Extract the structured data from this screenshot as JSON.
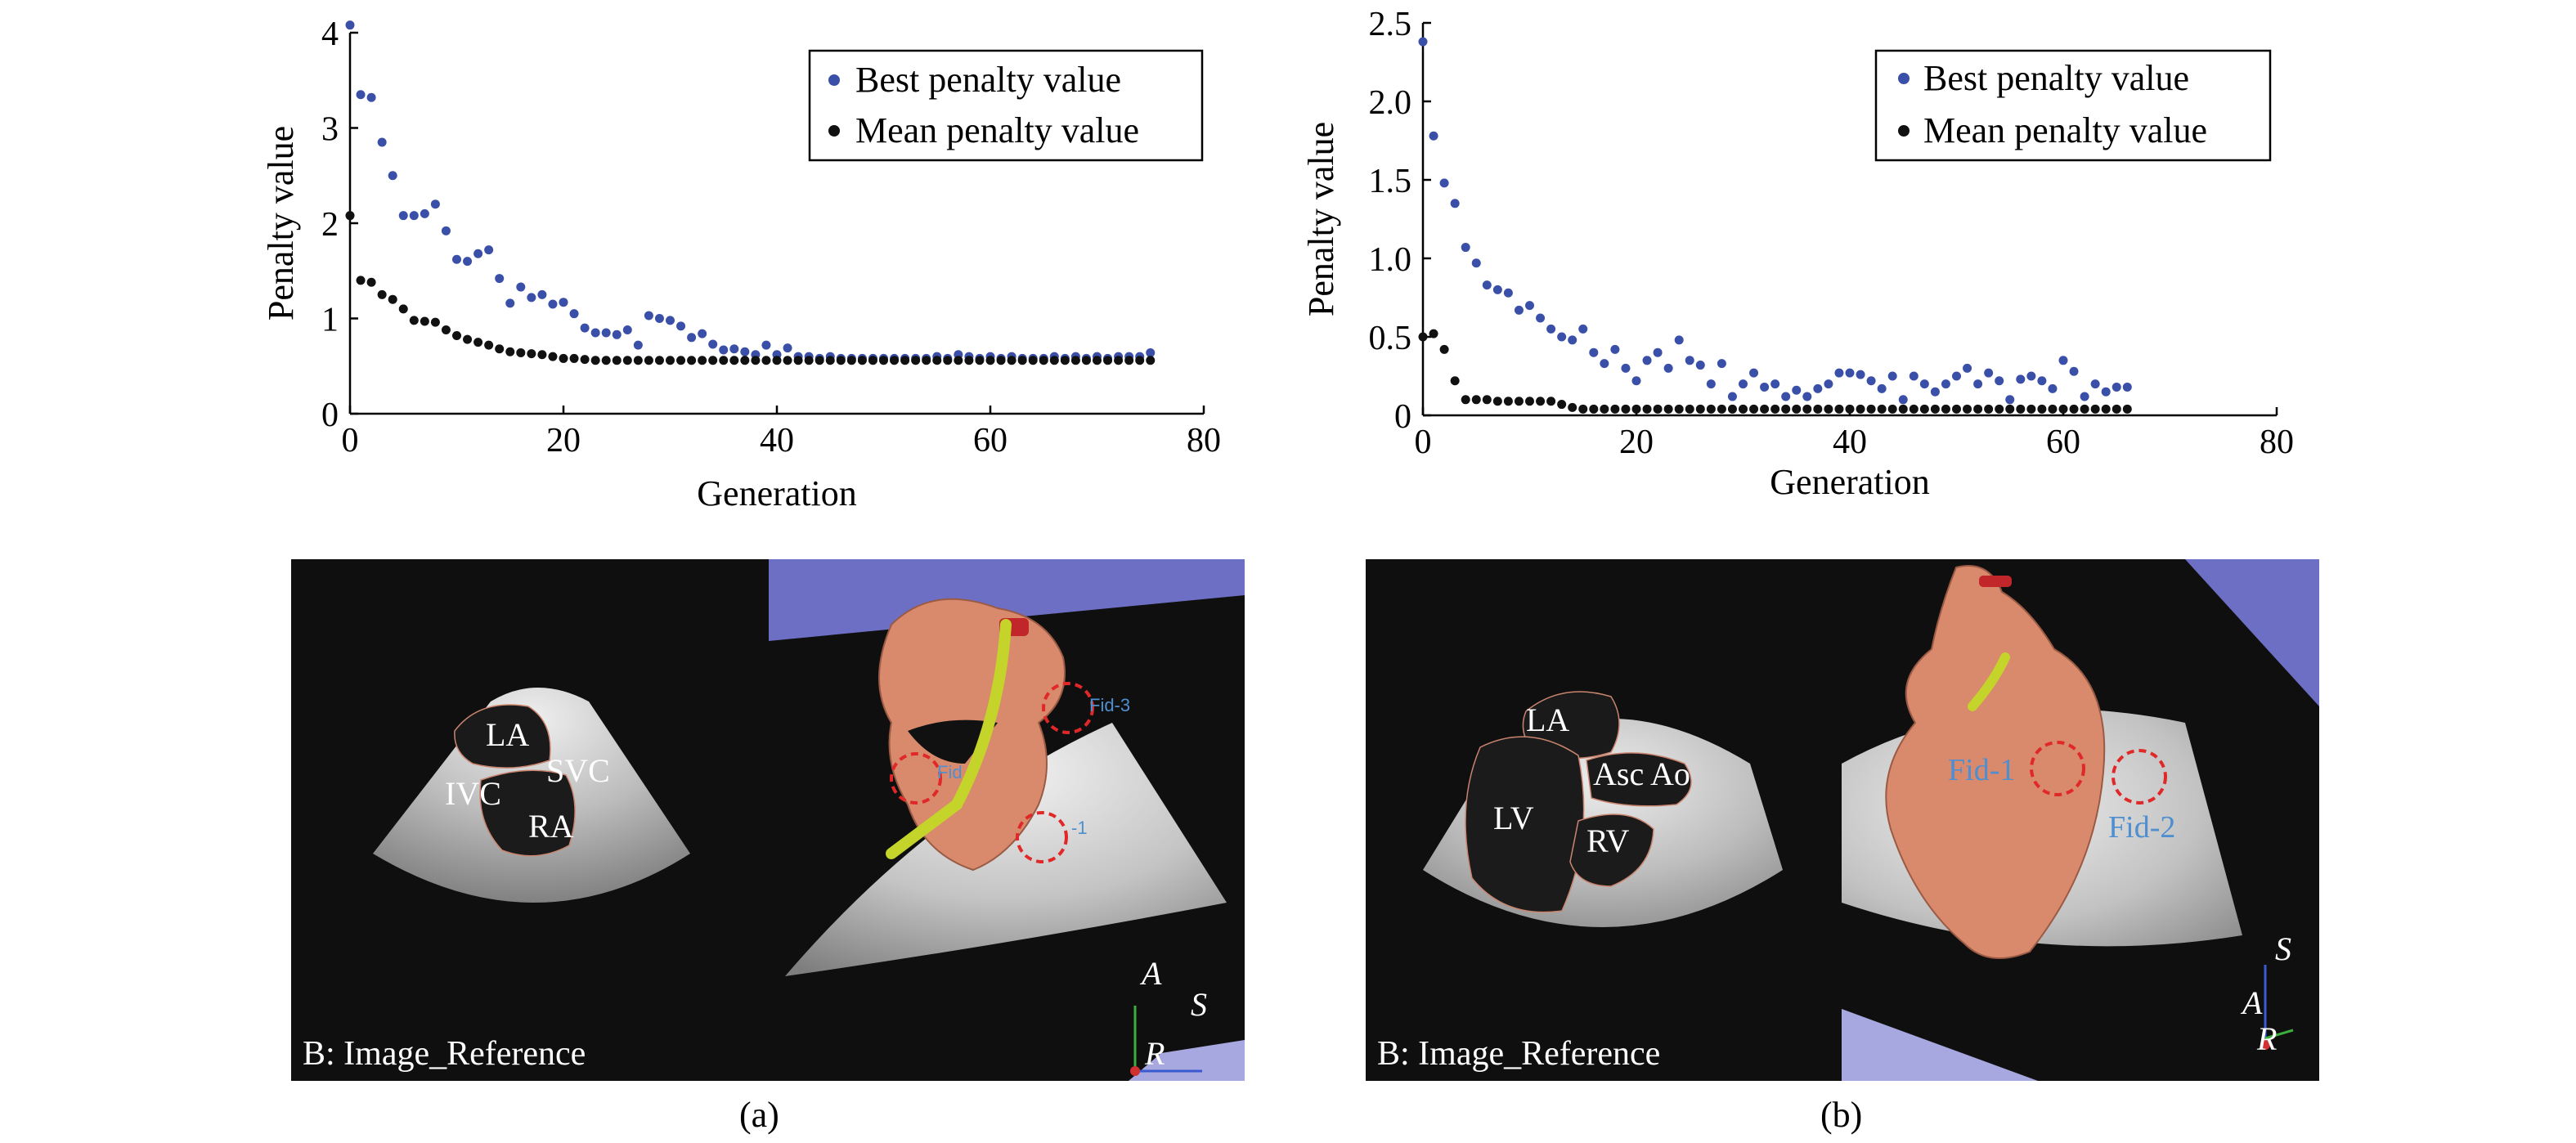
{
  "chart_data": [
    {
      "type": "scatter",
      "title": "",
      "xlabel": "Generation",
      "ylabel": "Penalty value",
      "xlim": [
        0,
        80
      ],
      "ylim": [
        0,
        4
      ],
      "xticks": [
        "0",
        "20",
        "40",
        "60",
        "80"
      ],
      "yticks": [
        "0",
        "1",
        "2",
        "3",
        "4"
      ],
      "legend_position": "top-right",
      "series": [
        {
          "name": "Best penalty value",
          "color": "#3a4fa8",
          "x": [
            0,
            1,
            2,
            3,
            4,
            5,
            6,
            7,
            8,
            9,
            10,
            11,
            12,
            13,
            14,
            15,
            16,
            17,
            18,
            19,
            20,
            21,
            22,
            23,
            24,
            25,
            26,
            27,
            28,
            29,
            30,
            31,
            32,
            33,
            34,
            35,
            36,
            37,
            38,
            39,
            40,
            41,
            42,
            43,
            44,
            45,
            46,
            47,
            48,
            49,
            50,
            51,
            52,
            53,
            54,
            55,
            56,
            57,
            58,
            59,
            60,
            61,
            62,
            63,
            64,
            65,
            66,
            67,
            68,
            69,
            70,
            71,
            72,
            73,
            74,
            75
          ],
          "y": [
            4.08,
            3.35,
            3.32,
            2.85,
            2.5,
            2.08,
            2.08,
            2.1,
            2.2,
            1.92,
            1.62,
            1.6,
            1.68,
            1.72,
            1.42,
            1.16,
            1.33,
            1.22,
            1.25,
            1.15,
            1.17,
            1.05,
            0.9,
            0.85,
            0.85,
            0.83,
            0.88,
            0.72,
            1.03,
            1.0,
            0.98,
            0.92,
            0.8,
            0.84,
            0.73,
            0.67,
            0.68,
            0.65,
            0.62,
            0.72,
            0.62,
            0.69,
            0.6,
            0.6,
            0.58,
            0.6,
            0.58,
            0.58,
            0.58,
            0.58,
            0.58,
            0.58,
            0.58,
            0.58,
            0.58,
            0.6,
            0.58,
            0.62,
            0.6,
            0.58,
            0.6,
            0.58,
            0.6,
            0.58,
            0.58,
            0.58,
            0.6,
            0.58,
            0.6,
            0.58,
            0.6,
            0.58,
            0.6,
            0.6,
            0.6,
            0.64
          ]
        },
        {
          "name": "Mean penalty value",
          "color": "#111111",
          "x": [
            0,
            1,
            2,
            3,
            4,
            5,
            6,
            7,
            8,
            9,
            10,
            11,
            12,
            13,
            14,
            15,
            16,
            17,
            18,
            19,
            20,
            21,
            22,
            23,
            24,
            25,
            26,
            27,
            28,
            29,
            30,
            31,
            32,
            33,
            34,
            35,
            36,
            37,
            38,
            39,
            40,
            41,
            42,
            43,
            44,
            45,
            46,
            47,
            48,
            49,
            50,
            51,
            52,
            53,
            54,
            55,
            56,
            57,
            58,
            59,
            60,
            61,
            62,
            63,
            64,
            65,
            66,
            67,
            68,
            69,
            70,
            71,
            72,
            73,
            74,
            75
          ],
          "y": [
            2.08,
            1.4,
            1.38,
            1.25,
            1.2,
            1.1,
            0.98,
            0.97,
            0.96,
            0.88,
            0.82,
            0.78,
            0.75,
            0.72,
            0.68,
            0.65,
            0.64,
            0.63,
            0.62,
            0.6,
            0.58,
            0.58,
            0.57,
            0.56,
            0.56,
            0.56,
            0.56,
            0.56,
            0.56,
            0.56,
            0.56,
            0.56,
            0.56,
            0.56,
            0.56,
            0.56,
            0.56,
            0.56,
            0.56,
            0.56,
            0.56,
            0.56,
            0.56,
            0.56,
            0.56,
            0.56,
            0.56,
            0.56,
            0.56,
            0.56,
            0.56,
            0.56,
            0.56,
            0.56,
            0.56,
            0.56,
            0.56,
            0.56,
            0.56,
            0.56,
            0.56,
            0.56,
            0.56,
            0.56,
            0.56,
            0.56,
            0.56,
            0.56,
            0.56,
            0.56,
            0.56,
            0.56,
            0.56,
            0.56,
            0.56,
            0.56
          ]
        }
      ]
    },
    {
      "type": "scatter",
      "title": "",
      "xlabel": "Generation",
      "ylabel": "Penalty value",
      "xlim": [
        0,
        80
      ],
      "ylim": [
        0,
        2.5
      ],
      "xticks": [
        "0",
        "20",
        "40",
        "60",
        "80"
      ],
      "yticks": [
        "0",
        "0.5",
        "1.0",
        "1.5",
        "2.0",
        "2.5"
      ],
      "legend_position": "top-right",
      "series": [
        {
          "name": "Best penalty value",
          "color": "#3a4fa8",
          "x": [
            0,
            1,
            2,
            3,
            4,
            5,
            6,
            7,
            8,
            9,
            10,
            11,
            12,
            13,
            14,
            15,
            16,
            17,
            18,
            19,
            20,
            21,
            22,
            23,
            24,
            25,
            26,
            27,
            28,
            29,
            30,
            31,
            32,
            33,
            34,
            35,
            36,
            37,
            38,
            39,
            40,
            41,
            42,
            43,
            44,
            45,
            46,
            47,
            48,
            49,
            50,
            51,
            52,
            53,
            54,
            55,
            56,
            57,
            58,
            59,
            60,
            61,
            62,
            63,
            64,
            65,
            66
          ],
          "y": [
            2.38,
            1.78,
            1.48,
            1.35,
            1.07,
            0.97,
            0.83,
            0.8,
            0.78,
            0.67,
            0.7,
            0.62,
            0.55,
            0.5,
            0.48,
            0.55,
            0.4,
            0.33,
            0.42,
            0.3,
            0.22,
            0.35,
            0.4,
            0.3,
            0.48,
            0.35,
            0.32,
            0.2,
            0.33,
            0.12,
            0.2,
            0.27,
            0.18,
            0.2,
            0.12,
            0.16,
            0.12,
            0.17,
            0.2,
            0.27,
            0.27,
            0.26,
            0.22,
            0.17,
            0.25,
            0.1,
            0.25,
            0.2,
            0.15,
            0.2,
            0.25,
            0.3,
            0.2,
            0.27,
            0.22,
            0.1,
            0.23,
            0.25,
            0.22,
            0.17,
            0.35,
            0.28,
            0.12,
            0.2,
            0.15,
            0.18,
            0.18
          ]
        },
        {
          "name": "Mean penalty value",
          "color": "#111111",
          "x": [
            0,
            1,
            2,
            3,
            4,
            5,
            6,
            7,
            8,
            9,
            10,
            11,
            12,
            13,
            14,
            15,
            16,
            17,
            18,
            19,
            20,
            21,
            22,
            23,
            24,
            25,
            26,
            27,
            28,
            29,
            30,
            31,
            32,
            33,
            34,
            35,
            36,
            37,
            38,
            39,
            40,
            41,
            42,
            43,
            44,
            45,
            46,
            47,
            48,
            49,
            50,
            51,
            52,
            53,
            54,
            55,
            56,
            57,
            58,
            59,
            60,
            61,
            62,
            63,
            64,
            65,
            66
          ],
          "y": [
            0.5,
            0.52,
            0.42,
            0.22,
            0.1,
            0.1,
            0.1,
            0.09,
            0.09,
            0.09,
            0.09,
            0.09,
            0.09,
            0.07,
            0.05,
            0.04,
            0.04,
            0.04,
            0.04,
            0.04,
            0.04,
            0.04,
            0.04,
            0.04,
            0.04,
            0.04,
            0.04,
            0.04,
            0.04,
            0.04,
            0.04,
            0.04,
            0.04,
            0.04,
            0.04,
            0.04,
            0.04,
            0.04,
            0.04,
            0.04,
            0.04,
            0.04,
            0.04,
            0.04,
            0.04,
            0.04,
            0.04,
            0.04,
            0.04,
            0.04,
            0.04,
            0.04,
            0.04,
            0.04,
            0.04,
            0.04,
            0.04,
            0.04,
            0.04,
            0.04,
            0.04,
            0.04,
            0.04,
            0.04,
            0.04,
            0.04,
            0.04
          ]
        }
      ]
    }
  ],
  "images": {
    "a": {
      "caption": "(a)",
      "left_label": "B: Image_Reference",
      "structures": [
        "LA",
        "SVC",
        "IVC",
        "RA"
      ],
      "fiducials": [
        "Fid-3",
        "Fid",
        "-1"
      ],
      "axes": [
        "A",
        "S",
        "R"
      ]
    },
    "b": {
      "caption": "(b)",
      "left_label": "B: Image_Reference",
      "structures": [
        "LA",
        "Asc Ao",
        "LV",
        "RV"
      ],
      "fiducials": [
        "Fid-1",
        "Fid-2"
      ],
      "axes": [
        "S",
        "A",
        "R"
      ]
    }
  },
  "colors": {
    "best": "#3a4fa8",
    "mean": "#111111",
    "model": "#d98a6c",
    "catheter": "#c4d42a",
    "sky": "#6d6fc4",
    "fid_ring": "#e02828",
    "fid_text": "#4f8fcf"
  }
}
